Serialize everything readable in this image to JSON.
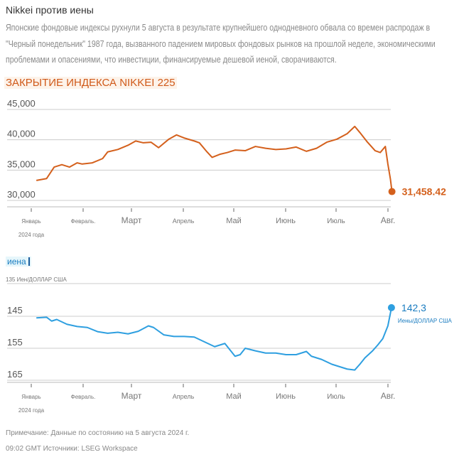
{
  "header": {
    "title": "Nikkei против иены",
    "description": "Японские фондовые индексы рухнули 5 августа в результате крупнейшего однодневного обвала со времен распродаж в \"Черный понедельник\" 1987 года, вызванного падением мировых фондовых рынков на прошлой неделе, экономическими проблемами и опасениями, что инвестиции, финансируемые дешевой иеной, сворачиваются."
  },
  "footer": {
    "note": "Примечание: Данные по состоянию на 5 августа 2024 г.",
    "source": "09:02 GMT Источники: LSEG Workspace"
  },
  "chart_data": [
    {
      "type": "line",
      "title": "ЗАКРЫТИЕ ИНДЕКСА NIKKEI 225",
      "color": "#d4601c",
      "ylim": [
        30000,
        45000
      ],
      "yticks": [
        "30,000",
        "35,000",
        "40,000",
        "45,000"
      ],
      "ytick_values": [
        30000,
        35000,
        40000,
        45000
      ],
      "xticks": [
        "Январь",
        "Февраль.",
        "Март",
        "Апрель",
        "Май",
        "Июнь",
        "Июль",
        "Авг."
      ],
      "x_sublabel": "2024 года",
      "last_label": "31,458.42",
      "x": [
        0.1,
        0.3,
        0.45,
        0.6,
        0.75,
        0.9,
        1.0,
        1.2,
        1.4,
        1.5,
        1.7,
        1.9,
        2.05,
        2.2,
        2.35,
        2.5,
        2.7,
        2.85,
        3.0,
        3.2,
        3.3,
        3.45,
        3.55,
        3.7,
        3.85,
        4.0,
        4.2,
        4.4,
        4.6,
        4.8,
        5.0,
        5.2,
        5.4,
        5.6,
        5.8,
        6.0,
        6.2,
        6.35,
        6.45,
        6.6,
        6.75,
        6.85,
        6.95,
        7.0,
        7.05,
        7.08
      ],
      "values": [
        33300,
        33600,
        35500,
        35900,
        35500,
        36200,
        36000,
        36200,
        36900,
        38000,
        38400,
        39100,
        39800,
        39500,
        39600,
        38700,
        40100,
        40800,
        40300,
        39800,
        39500,
        38000,
        37100,
        37600,
        37900,
        38300,
        38200,
        38900,
        38600,
        38400,
        38500,
        38800,
        38100,
        38600,
        39600,
        40100,
        41000,
        42200,
        41200,
        39600,
        38200,
        37900,
        38900,
        36000,
        33500,
        31458
      ]
    },
    {
      "type": "line",
      "title": "иена",
      "unit": "135 Иен/ДОЛЛАР США",
      "color": "#2e9fe0",
      "ylim": [
        135,
        167
      ],
      "inverted": true,
      "yticks": [
        "145",
        "155",
        "165"
      ],
      "ytick_values": [
        145,
        155,
        165
      ],
      "xticks": [
        "Январь",
        "Февраль.",
        "Март",
        "Апрель",
        "Май",
        "Июнь",
        "Июль",
        "Авг."
      ],
      "x_sublabel": "2024 года",
      "last_label": "142,3",
      "last_unit": "Иены/ДОЛЛАР США",
      "x": [
        0.1,
        0.3,
        0.4,
        0.5,
        0.7,
        0.9,
        1.1,
        1.3,
        1.5,
        1.7,
        1.9,
        2.1,
        2.3,
        2.4,
        2.6,
        2.8,
        3.0,
        3.2,
        3.4,
        3.6,
        3.8,
        4.0,
        4.1,
        4.2,
        4.4,
        4.6,
        4.8,
        5.0,
        5.2,
        5.4,
        5.5,
        5.7,
        5.9,
        6.0,
        6.2,
        6.35,
        6.45,
        6.55,
        6.7,
        6.8,
        6.9,
        7.0,
        7.05,
        7.07
      ],
      "values": [
        145.5,
        145.3,
        146.5,
        146,
        147.5,
        148.2,
        148.5,
        149.8,
        150.3,
        150,
        150.5,
        149.7,
        148,
        148.5,
        150.8,
        151.3,
        151.3,
        151.5,
        153,
        154.5,
        153.5,
        157.5,
        157,
        155,
        155.8,
        156.5,
        156.5,
        157,
        157,
        156,
        157.5,
        158.5,
        160,
        160.5,
        161.5,
        161.8,
        160,
        158,
        155.8,
        154,
        152,
        148,
        144,
        142.3
      ]
    }
  ]
}
